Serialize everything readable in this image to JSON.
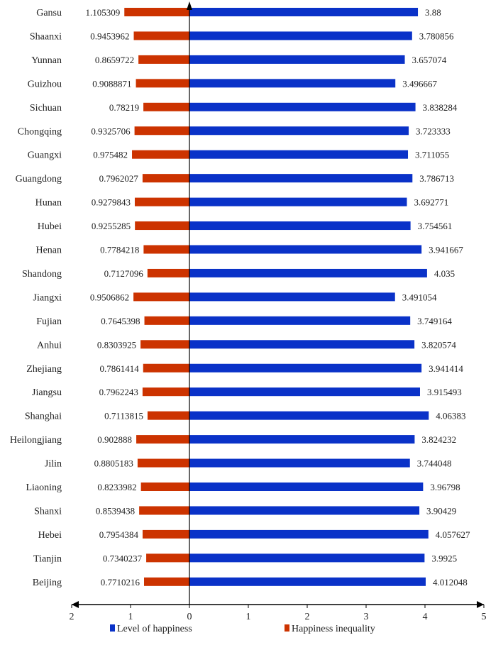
{
  "chart_data": {
    "type": "bar",
    "orientation": "horizontal-diverging",
    "categories": [
      "Gansu",
      "Shaanxi",
      "Yunnan",
      "Guizhou",
      "Sichuan",
      "Chongqing",
      "Guangxi",
      "Guangdong",
      "Hunan",
      "Hubei",
      "Henan",
      "Shandong",
      "Jiangxi",
      "Fujian",
      "Anhui",
      "Zhejiang",
      "Jiangsu",
      "Shanghai",
      "Heilongjiang",
      "Jilin",
      "Liaoning",
      "Shanxi",
      "Hebei",
      "Tianjin",
      "Beijing"
    ],
    "series": [
      {
        "name": "Level of happiness",
        "color": "#0a32c8",
        "direction": "right",
        "values": [
          3.88,
          3.780856,
          3.657074,
          3.496667,
          3.838284,
          3.723333,
          3.711055,
          3.786713,
          3.692771,
          3.754561,
          3.941667,
          4.035,
          3.491054,
          3.749164,
          3.820574,
          3.941414,
          3.915493,
          4.06383,
          3.824232,
          3.744048,
          3.96798,
          3.90429,
          4.057627,
          3.9925,
          4.012048
        ],
        "labels": [
          "3.88",
          "3.780856",
          "3.657074",
          "3.496667",
          "3.838284",
          "3.723333",
          "3.711055",
          "3.786713",
          "3.692771",
          "3.754561",
          "3.941667",
          "4.035",
          "3.491054",
          "3.749164",
          "3.820574",
          "3.941414",
          "3.915493",
          "4.06383",
          "3.824232",
          "3.744048",
          "3.96798",
          "3.90429",
          "4.057627",
          "3.9925",
          "4.012048"
        ]
      },
      {
        "name": "Happiness inequality",
        "color": "#cc3300",
        "direction": "left",
        "values": [
          1.105309,
          0.9453962,
          0.8659722,
          0.9088871,
          0.78219,
          0.9325706,
          0.975482,
          0.7962027,
          0.9279843,
          0.9255285,
          0.7784218,
          0.7127096,
          0.9506862,
          0.7645398,
          0.8303925,
          0.7861414,
          0.7962243,
          0.7113815,
          0.902888,
          0.8805183,
          0.8233982,
          0.8539438,
          0.7954384,
          0.7340237,
          0.7710216
        ],
        "labels": [
          "1.105309",
          "0.9453962",
          "0.8659722",
          "0.9088871",
          "0.78219",
          "0.9325706",
          "0.975482",
          "0.7962027",
          "0.9279843",
          "0.9255285",
          "0.7784218",
          "0.7127096",
          "0.9506862",
          "0.7645398",
          "0.8303925",
          "0.7861414",
          "0.7962243",
          "0.7113815",
          "0.902888",
          "0.8805183",
          "0.8233982",
          "0.8539438",
          "0.7954384",
          "0.7340237",
          "0.7710216"
        ]
      }
    ],
    "xlim": [
      -2,
      5
    ],
    "x_ticks": [
      "2",
      "1",
      "0",
      "1",
      "2",
      "3",
      "4",
      "5"
    ],
    "grid": false,
    "legend_placement": "bottom"
  }
}
